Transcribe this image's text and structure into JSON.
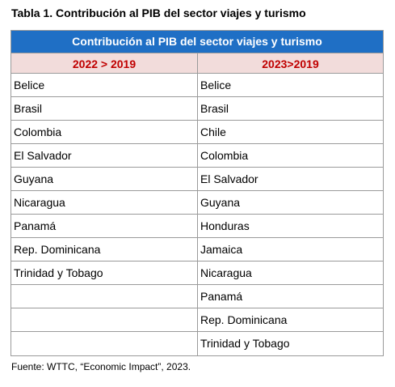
{
  "caption": "Tabla 1. Contribución al PIB del sector viajes y turismo",
  "table": {
    "banner": "Contribución al PIB del sector viajes y turismo",
    "columns": [
      {
        "header": "2022 > 2019",
        "rows": [
          "Belice",
          "Brasil",
          "Colombia",
          "El Salvador",
          "Guyana",
          "Nicaragua",
          "Panamá",
          "Rep. Dominicana",
          "Trinidad y Tobago",
          "",
          "",
          ""
        ]
      },
      {
        "header": "2023>2019",
        "rows": [
          "Belice",
          "Brasil",
          "Chile",
          "Colombia",
          "El Salvador",
          "Guyana",
          "Honduras",
          "Jamaica",
          "Nicaragua",
          "Panamá",
          "Rep. Dominicana",
          "Trinidad y Tobago"
        ]
      }
    ]
  },
  "source": "Fuente: WTTC, “Economic Impact”, 2023.",
  "colors": {
    "banner_bg": "#1f6fc5",
    "header_bg": "#f2dcdb",
    "header_text": "#c00000"
  }
}
